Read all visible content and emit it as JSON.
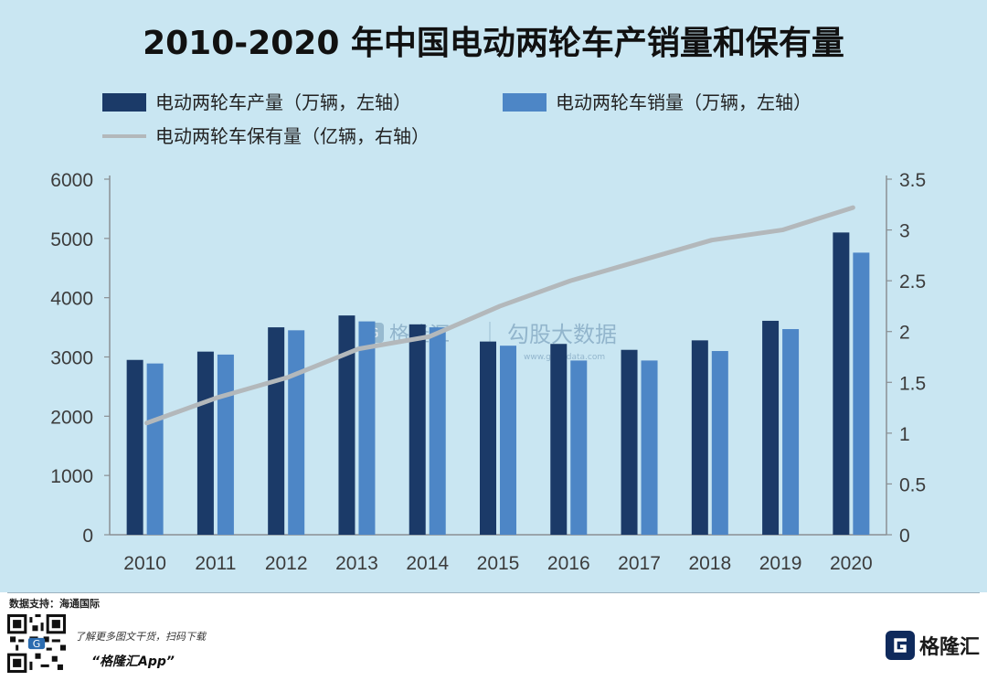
{
  "title": "2010-2020 年中国电动两轮车产销量和保有量",
  "legend": [
    {
      "label": "电动两轮车产量（万辆，左轴）",
      "color": "#1b3a68",
      "kind": "bar"
    },
    {
      "label": "电动两轮车销量（万辆，左轴）",
      "color": "#4d86c6",
      "kind": "bar"
    },
    {
      "label": "电动两轮车保有量（亿辆，右轴）",
      "color": "#b3b8bb",
      "kind": "line"
    }
  ],
  "watermark": {
    "cn": "格隆汇",
    "cn2": "勾股大数据",
    "url": "www.gogudata.com"
  },
  "chart_data": {
    "type": "bar",
    "title": "2010-2020 年中国电动两轮车产销量和保有量",
    "categories": [
      "2010",
      "2011",
      "2012",
      "2013",
      "2014",
      "2015",
      "2016",
      "2017",
      "2018",
      "2019",
      "2020"
    ],
    "series": [
      {
        "name": "电动两轮车产量（万辆，左轴）",
        "axis": "left",
        "type": "bar",
        "color": "#1b3a68",
        "values": [
          2950,
          3090,
          3500,
          3700,
          3550,
          3260,
          3220,
          3120,
          3280,
          3610,
          5100
        ]
      },
      {
        "name": "电动两轮车销量（万辆，左轴）",
        "axis": "left",
        "type": "bar",
        "color": "#4d86c6",
        "values": [
          2890,
          3040,
          3450,
          3600,
          3500,
          3190,
          2940,
          2940,
          3100,
          3470,
          4760
        ]
      },
      {
        "name": "电动两轮车保有量（亿辆，右轴）",
        "axis": "right",
        "type": "line",
        "color": "#b3b8bb",
        "values": [
          1.1,
          1.35,
          1.55,
          1.83,
          1.95,
          2.25,
          2.5,
          2.7,
          2.9,
          3.0,
          3.22
        ]
      }
    ],
    "y_left": {
      "min": 0,
      "max": 6000,
      "ticks": [
        "0",
        "1000",
        "2000",
        "3000",
        "4000",
        "5000",
        "6000"
      ]
    },
    "y_right": {
      "min": 0,
      "max": 3.5,
      "ticks": [
        "0",
        "0.5",
        "1",
        "1.5",
        "2",
        "2.5",
        "3",
        "3.5"
      ]
    },
    "grid": false,
    "legend_position": "top-left"
  },
  "footer": {
    "source": "数据支持：海通国际",
    "promo_line": "了解更多图文干货，扫码下载",
    "promo_app": "“格隆汇App”",
    "brand": "格隆汇",
    "brand_icon": "G",
    "brand_color": "#0f2a5c",
    "qr_icon": "qr-code-icon"
  }
}
